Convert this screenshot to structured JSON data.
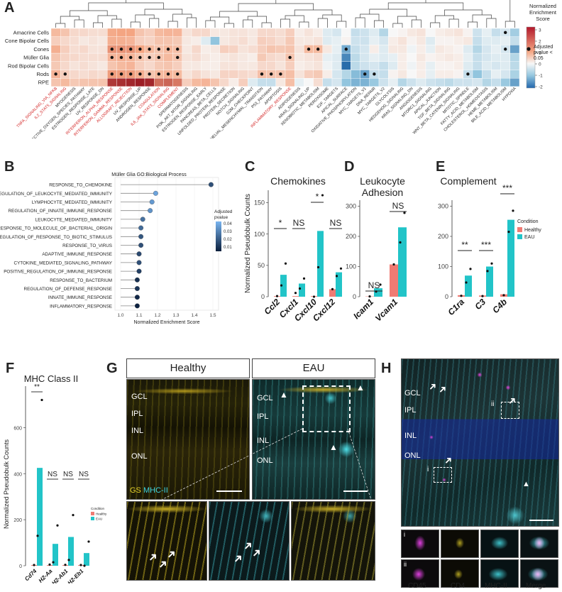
{
  "panels": {
    "A": "A",
    "B": "B",
    "C": "C",
    "D": "D",
    "E": "E",
    "F": "F",
    "G": "G",
    "H": "H"
  },
  "panelA": {
    "legend_title": "Normalized Enrichment Score",
    "legend_ticks": [
      "3",
      "2",
      "1",
      "0",
      "-1",
      "-2"
    ],
    "pvalue_legend": "Adjusted pvalue < 0.05",
    "rows": [
      "Amacrine Cells",
      "Cone Bipolar Cells",
      "Cones",
      "Müller Glia",
      "Rod Bipolar Cells",
      "Rods",
      "RPE"
    ],
    "columns": [
      {
        "name": "TNFA_SIGNALING_VIA_NFKB",
        "red": true
      },
      {
        "name": "IL2_STAT5_SIGNALING",
        "red": true
      },
      {
        "name": "MYOGENESIS",
        "red": false
      },
      {
        "name": "REACTIVE_OXYGEN_SPECIES_PATHWAY",
        "red": false
      },
      {
        "name": "ESTROGEN_RESPONSE_LATE",
        "red": false
      },
      {
        "name": "UV_RESPONSE_DN",
        "red": false
      },
      {
        "name": "INTERFERON_ALPHA_RESPONSE",
        "red": true
      },
      {
        "name": "INTERFERON_GAMMA_RESPONSE",
        "red": true
      },
      {
        "name": "ALLOGRAFT_REJECTION",
        "red": true
      },
      {
        "name": "UV_RESPONSE_UP",
        "red": false
      },
      {
        "name": "ANDROGEN_RESPONSE",
        "red": false
      },
      {
        "name": "COAGULATION",
        "red": true
      },
      {
        "name": "IL6_JAK_STAT3_SIGNALING",
        "red": true
      },
      {
        "name": "COMPLEMENT",
        "red": true
      },
      {
        "name": "SPERMATOGENESIS",
        "red": false
      },
      {
        "name": "PI3K_AKT_MTOR_SIGNALING",
        "red": false
      },
      {
        "name": "ESTROGEN_RESPONSE_EARLY",
        "red": false
      },
      {
        "name": "PANCREAS_BETA_CELLS",
        "red": false
      },
      {
        "name": "UNFOLDED_PROTEIN_RESPONSE",
        "red": false
      },
      {
        "name": "PROTEIN_SECRETION",
        "red": false
      },
      {
        "name": "NOTCH_SIGNALING",
        "red": false
      },
      {
        "name": "G2M_CHECKPOINT",
        "red": false
      },
      {
        "name": "EPITHELIAL_MESENCHYMAL_TRANSITION",
        "red": false
      },
      {
        "name": "P53_PATHWAY",
        "red": false
      },
      {
        "name": "APOPTOSIS",
        "red": false
      },
      {
        "name": "INFLAMMATORY_RESPONSE",
        "red": true
      },
      {
        "name": "ADIPOGENESIS",
        "red": false
      },
      {
        "name": "KRAS_SIGNALING_UP",
        "red": false
      },
      {
        "name": "XENOBIOTIC_METABOLISM",
        "red": false
      },
      {
        "name": "PEROXISOME",
        "red": false
      },
      {
        "name": "E2F_TARGETS",
        "red": false
      },
      {
        "name": "APICAL_SURFACE",
        "red": false
      },
      {
        "name": "OXIDATIVE_PHOSPHORYLATION",
        "red": false
      },
      {
        "name": "MYC_TARGETS_V1",
        "red": false
      },
      {
        "name": "DNA_REPAIR",
        "red": false
      },
      {
        "name": "MYC_TARGETS_V2",
        "red": false
      },
      {
        "name": "GLYCOLYSIS",
        "red": false
      },
      {
        "name": "HEDGEHOG_SIGNALING",
        "red": false
      },
      {
        "name": "KRAS_SIGNALING_DN",
        "red": false
      },
      {
        "name": "ANGIOGENESIS",
        "red": false
      },
      {
        "name": "MTORC1_SIGNALING",
        "red": false
      },
      {
        "name": "APICAL_JUNCTION",
        "red": false
      },
      {
        "name": "TGF_BETA_SIGNALING",
        "red": false
      },
      {
        "name": "WNT_BETA_CATENIN_SIGNALING",
        "red": false
      },
      {
        "name": "MITOTIC_SPINDLE",
        "red": false
      },
      {
        "name": "FATTY_ACID_METABOLISM",
        "red": false
      },
      {
        "name": "CHOLESTEROL_HOMEOSTASIS",
        "red": false
      },
      {
        "name": "HEME_METABOLISM",
        "red": false
      },
      {
        "name": "BILE_ACID_METABOLISM",
        "red": false
      },
      {
        "name": "HYPOXIA",
        "red": false
      }
    ]
  },
  "panelB": {
    "title": "Müller Glia GO:Biological Process",
    "xlabel": "Normalized Enrichment Score",
    "legend_title": "Adjusted pvalue",
    "legend_ticks": [
      "0.04",
      "0.03",
      "0.02",
      "0.01"
    ],
    "x_ticks": [
      "1.0",
      "1.1",
      "1.2",
      "1.3",
      "1.4",
      "1.5"
    ]
  },
  "panelC": {
    "title": "Chemokines",
    "ylabel": "Normalized Pseudobulk Counts",
    "sig": [
      "*",
      "NS",
      "*",
      "NS"
    ]
  },
  "panelD": {
    "title_line1": "Leukocyte",
    "title_line2": "Adhesion",
    "sig": [
      "NS",
      "NS"
    ]
  },
  "panelE": {
    "title": "Complement",
    "sig": [
      "**",
      "***",
      "***"
    ],
    "legend_title": "Condition",
    "legend_items": [
      "Healthy",
      "EAU"
    ]
  },
  "panelF": {
    "title": "MHC Class II",
    "ylabel": "Normalized Pseudobulk Counts",
    "sig": [
      "**",
      "NS",
      "NS",
      "NS"
    ],
    "legend_title": "Condition",
    "legend_items": [
      "Healthy",
      "EAU"
    ]
  },
  "panelG": {
    "healthy": "Healthy",
    "eau": "EAU",
    "layers_left": [
      "GCL",
      "IPL",
      "INL",
      "ONL"
    ],
    "layers_right": [
      "GCL",
      "IPL",
      "INL",
      "ONL"
    ],
    "stain_gs": "GS",
    "stain_mhc": "MHC-II"
  },
  "panelH": {
    "layers": [
      "GCL",
      "IPL",
      "INL",
      "ONL"
    ],
    "insets": [
      "i",
      "ii"
    ],
    "channels": [
      "CD45",
      "CD4",
      "MHC-II",
      "Merge"
    ]
  },
  "chart_data": [
    {
      "type": "heatmap",
      "panel": "A",
      "legend_title": "Normalized Enrichment Score",
      "scale_range": [
        -2,
        3
      ],
      "rows": [
        "Amacrine Cells",
        "Cone Bipolar Cells",
        "Cones",
        "Müller Glia",
        "Rod Bipolar Cells",
        "Rods",
        "RPE"
      ],
      "values": [
        [
          1.2,
          1.0,
          0.6,
          0.6,
          0.5,
          0.5,
          1.5,
          1.6,
          1.6,
          1.0,
          0.8,
          1.2,
          1.3,
          1.3,
          0.4,
          0.6,
          0.6,
          0.3,
          0.3,
          0.4,
          0.4,
          0.3,
          0.6,
          0.6,
          0.5,
          0.8,
          0.2,
          0.4,
          0.2,
          -0.3,
          -0.4,
          0.0,
          -0.6,
          -0.5,
          -0.3,
          -0.8,
          0.0,
          0.1,
          0.3,
          0.4,
          0.0,
          0.2,
          0.3,
          0.4,
          0.1,
          -0.5,
          -0.2,
          -0.6,
          -0.4,
          -1.0
        ],
        [
          0.8,
          0.6,
          0.5,
          0.3,
          0.4,
          0.3,
          1.4,
          1.4,
          1.3,
          0.8,
          0.7,
          1.0,
          1.0,
          0.9,
          0.3,
          0.2,
          -0.3,
          -1.2,
          0.3,
          0.4,
          0.5,
          0.3,
          0.8,
          0.7,
          0.5,
          0.9,
          0.3,
          0.3,
          0.4,
          -0.3,
          -0.2,
          0.1,
          -0.5,
          -0.5,
          -0.2,
          -0.4,
          0.2,
          0.4,
          0.1,
          0.3,
          -0.3,
          0.1,
          0.1,
          0.2,
          0.3,
          -0.6,
          -0.3,
          -0.3,
          -0.2,
          -0.6
        ],
        [
          1.4,
          0.8,
          0.5,
          0.6,
          0.4,
          0.4,
          1.8,
          1.8,
          1.8,
          1.6,
          1.2,
          1.0,
          1.2,
          1.1,
          0.3,
          0.6,
          0.2,
          0.3,
          0.8,
          0.7,
          0.4,
          0.5,
          0.8,
          1.0,
          0.9,
          1.0,
          0.4,
          1.2,
          1.2,
          0.3,
          -0.2,
          -1.5,
          -0.6,
          -0.4,
          0.2,
          -0.3,
          0.3,
          0.3,
          -0.1,
          0.2,
          -0.2,
          0.3,
          0.2,
          0.1,
          -0.3,
          -0.8,
          -0.4,
          -0.2,
          -0.4,
          -1.6
        ],
        [
          1.0,
          0.7,
          0.6,
          0.5,
          0.5,
          0.5,
          1.3,
          1.4,
          1.3,
          1.0,
          0.8,
          1.0,
          1.2,
          1.0,
          0.4,
          0.5,
          0.3,
          0.2,
          0.3,
          0.4,
          0.3,
          0.2,
          0.9,
          0.6,
          0.5,
          1.0,
          0.3,
          0.4,
          0.5,
          -0.2,
          -0.3,
          -1.9,
          -0.7,
          -0.4,
          -0.2,
          -0.3,
          -0.2,
          0.2,
          0.0,
          0.3,
          0.1,
          0.2,
          0.3,
          0.2,
          -0.2,
          -0.6,
          -0.4,
          -0.3,
          -0.3,
          -0.8
        ],
        [
          0.9,
          0.6,
          0.4,
          0.5,
          0.4,
          0.3,
          1.0,
          1.2,
          1.3,
          0.8,
          0.6,
          0.9,
          1.0,
          0.8,
          0.3,
          0.3,
          0.2,
          0.2,
          0.4,
          0.4,
          0.3,
          0.3,
          0.6,
          0.6,
          0.4,
          0.8,
          0.2,
          0.3,
          0.4,
          -0.1,
          -0.3,
          -2.2,
          -0.7,
          -0.5,
          -0.4,
          -0.6,
          -0.3,
          0.2,
          -0.1,
          0.2,
          -0.2,
          0.1,
          0.1,
          0.2,
          -0.3,
          -0.6,
          -0.3,
          -0.4,
          -0.3,
          -0.7
        ],
        [
          1.3,
          0.8,
          0.6,
          0.5,
          0.6,
          0.5,
          1.7,
          1.7,
          1.7,
          1.4,
          1.0,
          1.2,
          1.3,
          1.2,
          0.4,
          0.6,
          0.4,
          0.3,
          0.7,
          0.7,
          0.6,
          0.5,
          1.1,
          1.0,
          1.0,
          1.1,
          0.4,
          0.8,
          0.9,
          0.2,
          -0.4,
          -0.8,
          -1.3,
          -1.6,
          -0.6,
          -0.6,
          0.1,
          0.3,
          0.0,
          0.2,
          -0.2,
          0.2,
          0.2,
          0.1,
          -0.6,
          -1.2,
          -0.6,
          -0.2,
          -0.4,
          -0.9
        ],
        [
          1.0,
          1.2,
          0.9,
          1.0,
          1.0,
          1.0,
          2.8,
          2.9,
          3.0,
          3.1,
          3.0,
          2.2,
          2.3,
          2.1,
          0.8,
          1.2,
          1.3,
          1.0,
          0.6,
          0.2,
          0.8,
          -0.3,
          -0.6,
          -0.6,
          0.3,
          1.1,
          -0.2,
          0.0,
          0.5,
          -0.6,
          -0.4,
          -1.2,
          -1.4,
          -1.4,
          -1.1,
          -0.5,
          -0.2,
          -0.8,
          -0.5,
          -0.3,
          -0.5,
          -0.6,
          -0.7,
          -0.5,
          -0.5,
          -0.4,
          -0.8,
          -0.6,
          -1.1,
          -1.6
        ]
      ]
    },
    {
      "type": "scatter",
      "panel": "B",
      "title": "Müller Glia GO:Biological Process",
      "xlabel": "Normalized Enrichment Score",
      "xlim": [
        1.0,
        1.5
      ],
      "categories": [
        "RESPONSE_TO_CHEMOKINE",
        "REGULATION_OF_LEUKOCYTE_MEDIATED_IMMUNITY",
        "LYMPHOCYTE_MEDIATED_IMMUNITY",
        "REGULATION_OF_INNATE_IMMUNE_RESPONSE",
        "LEUKOCYTE_MEDIATED_IMMUNITY",
        "RESPONSE_TO_MOLECULE_OF_BACTERIAL_ORIGIN",
        "REGULATION_OF_RESPONSE_TO_BIOTIC_STIMULUS",
        "RESPONSE_TO_VIRUS",
        "ADAPTIVE_IMMUNE_RESPONSE",
        "CYTOKINE_MEDIATED_SIGNALING_PATHWAY",
        "POSITIVE_REGULATION_OF_IMMUNE_RESPONSE",
        "RESPONSE_TO_BACTERIUM",
        "REGULATION_OF_DEFENSE_RESPONSE",
        "INNATE_IMMUNE_RESPONSE",
        "INFLAMMATORY_RESPONSE"
      ],
      "values": [
        1.49,
        1.19,
        1.17,
        1.16,
        1.12,
        1.11,
        1.11,
        1.11,
        1.1,
        1.1,
        1.1,
        1.09,
        1.09,
        1.09,
        1.09
      ],
      "pvalues": [
        0.02,
        0.045,
        0.042,
        0.04,
        0.03,
        0.028,
        0.022,
        0.02,
        0.018,
        0.02,
        0.015,
        0.01,
        0.012,
        0.008,
        0.006
      ]
    },
    {
      "type": "bar",
      "panel": "C",
      "title": "Chemokines",
      "ylabel": "Normalized Pseudobulk Counts",
      "ylim": [
        0,
        170
      ],
      "y_ticks": [
        0,
        50,
        100,
        150
      ],
      "categories": [
        "Ccl2",
        "Cxcl1",
        "Cxcl10",
        "Cxcl12"
      ],
      "series": [
        {
          "name": "Healthy",
          "values": [
            1,
            1,
            1,
            12
          ]
        },
        {
          "name": "EAU",
          "values": [
            35,
            21,
            105,
            39
          ]
        }
      ],
      "points": {
        "Healthy": [
          [
            1
          ],
          [
            6
          ],
          [
            0
          ],
          [
            12
          ]
        ],
        "EAU": [
          [
            53,
            18
          ],
          [
            29,
            13
          ],
          [
            162,
            47
          ],
          [
            45,
            33
          ]
        ]
      }
    },
    {
      "type": "bar",
      "panel": "D",
      "title": "Leukocyte Adhesion",
      "ylim": [
        0,
        320
      ],
      "y_ticks": [
        0,
        100,
        200,
        300
      ],
      "categories": [
        "Icam1",
        "Vcam1"
      ],
      "series": [
        {
          "name": "Healthy",
          "values": [
            1,
            107
          ]
        },
        {
          "name": "EAU",
          "values": [
            28,
            230
          ]
        }
      ],
      "points": {
        "Healthy": [
          [
            1
          ],
          [
            107
          ]
        ],
        "EAU": [
          [
            40,
            17
          ],
          [
            278,
            180
          ]
        ]
      }
    },
    {
      "type": "bar",
      "panel": "E",
      "title": "Complement",
      "ylim": [
        0,
        320
      ],
      "y_ticks": [
        0,
        100,
        200,
        300
      ],
      "categories": [
        "C1ra",
        "C3",
        "C4b"
      ],
      "series": [
        {
          "name": "Healthy",
          "values": [
            5,
            4,
            8
          ]
        },
        {
          "name": "EAU",
          "values": [
            70,
            100,
            255
          ]
        }
      ],
      "points": {
        "Healthy": [
          [
            3
          ],
          [
            2
          ],
          [
            5
          ]
        ],
        "EAU": [
          [
            92,
            47
          ],
          [
            110,
            85
          ],
          [
            285,
            215
          ]
        ]
      }
    },
    {
      "type": "bar",
      "panel": "F",
      "title": "MHC Class II",
      "ylabel": "Normalized Pseudobulk Counts",
      "ylim": [
        0,
        780
      ],
      "y_ticks": [
        0,
        200,
        400,
        600
      ],
      "categories": [
        "Cd74",
        "H2-Aa",
        "H2-Ab1",
        "H2-Eb1"
      ],
      "series": [
        {
          "name": "Healthy",
          "values": [
            3,
            3,
            3,
            3
          ]
        },
        {
          "name": "EAU",
          "values": [
            425,
            95,
            125,
            55
          ]
        }
      ],
      "points": {
        "Healthy": [
          [
            3
          ],
          [
            5
          ],
          [
            4
          ],
          [
            3
          ]
        ],
        "EAU": [
          [
            720,
            130
          ],
          [
            175,
            15
          ],
          [
            220,
            25
          ],
          [
            105,
            0
          ]
        ]
      }
    }
  ]
}
